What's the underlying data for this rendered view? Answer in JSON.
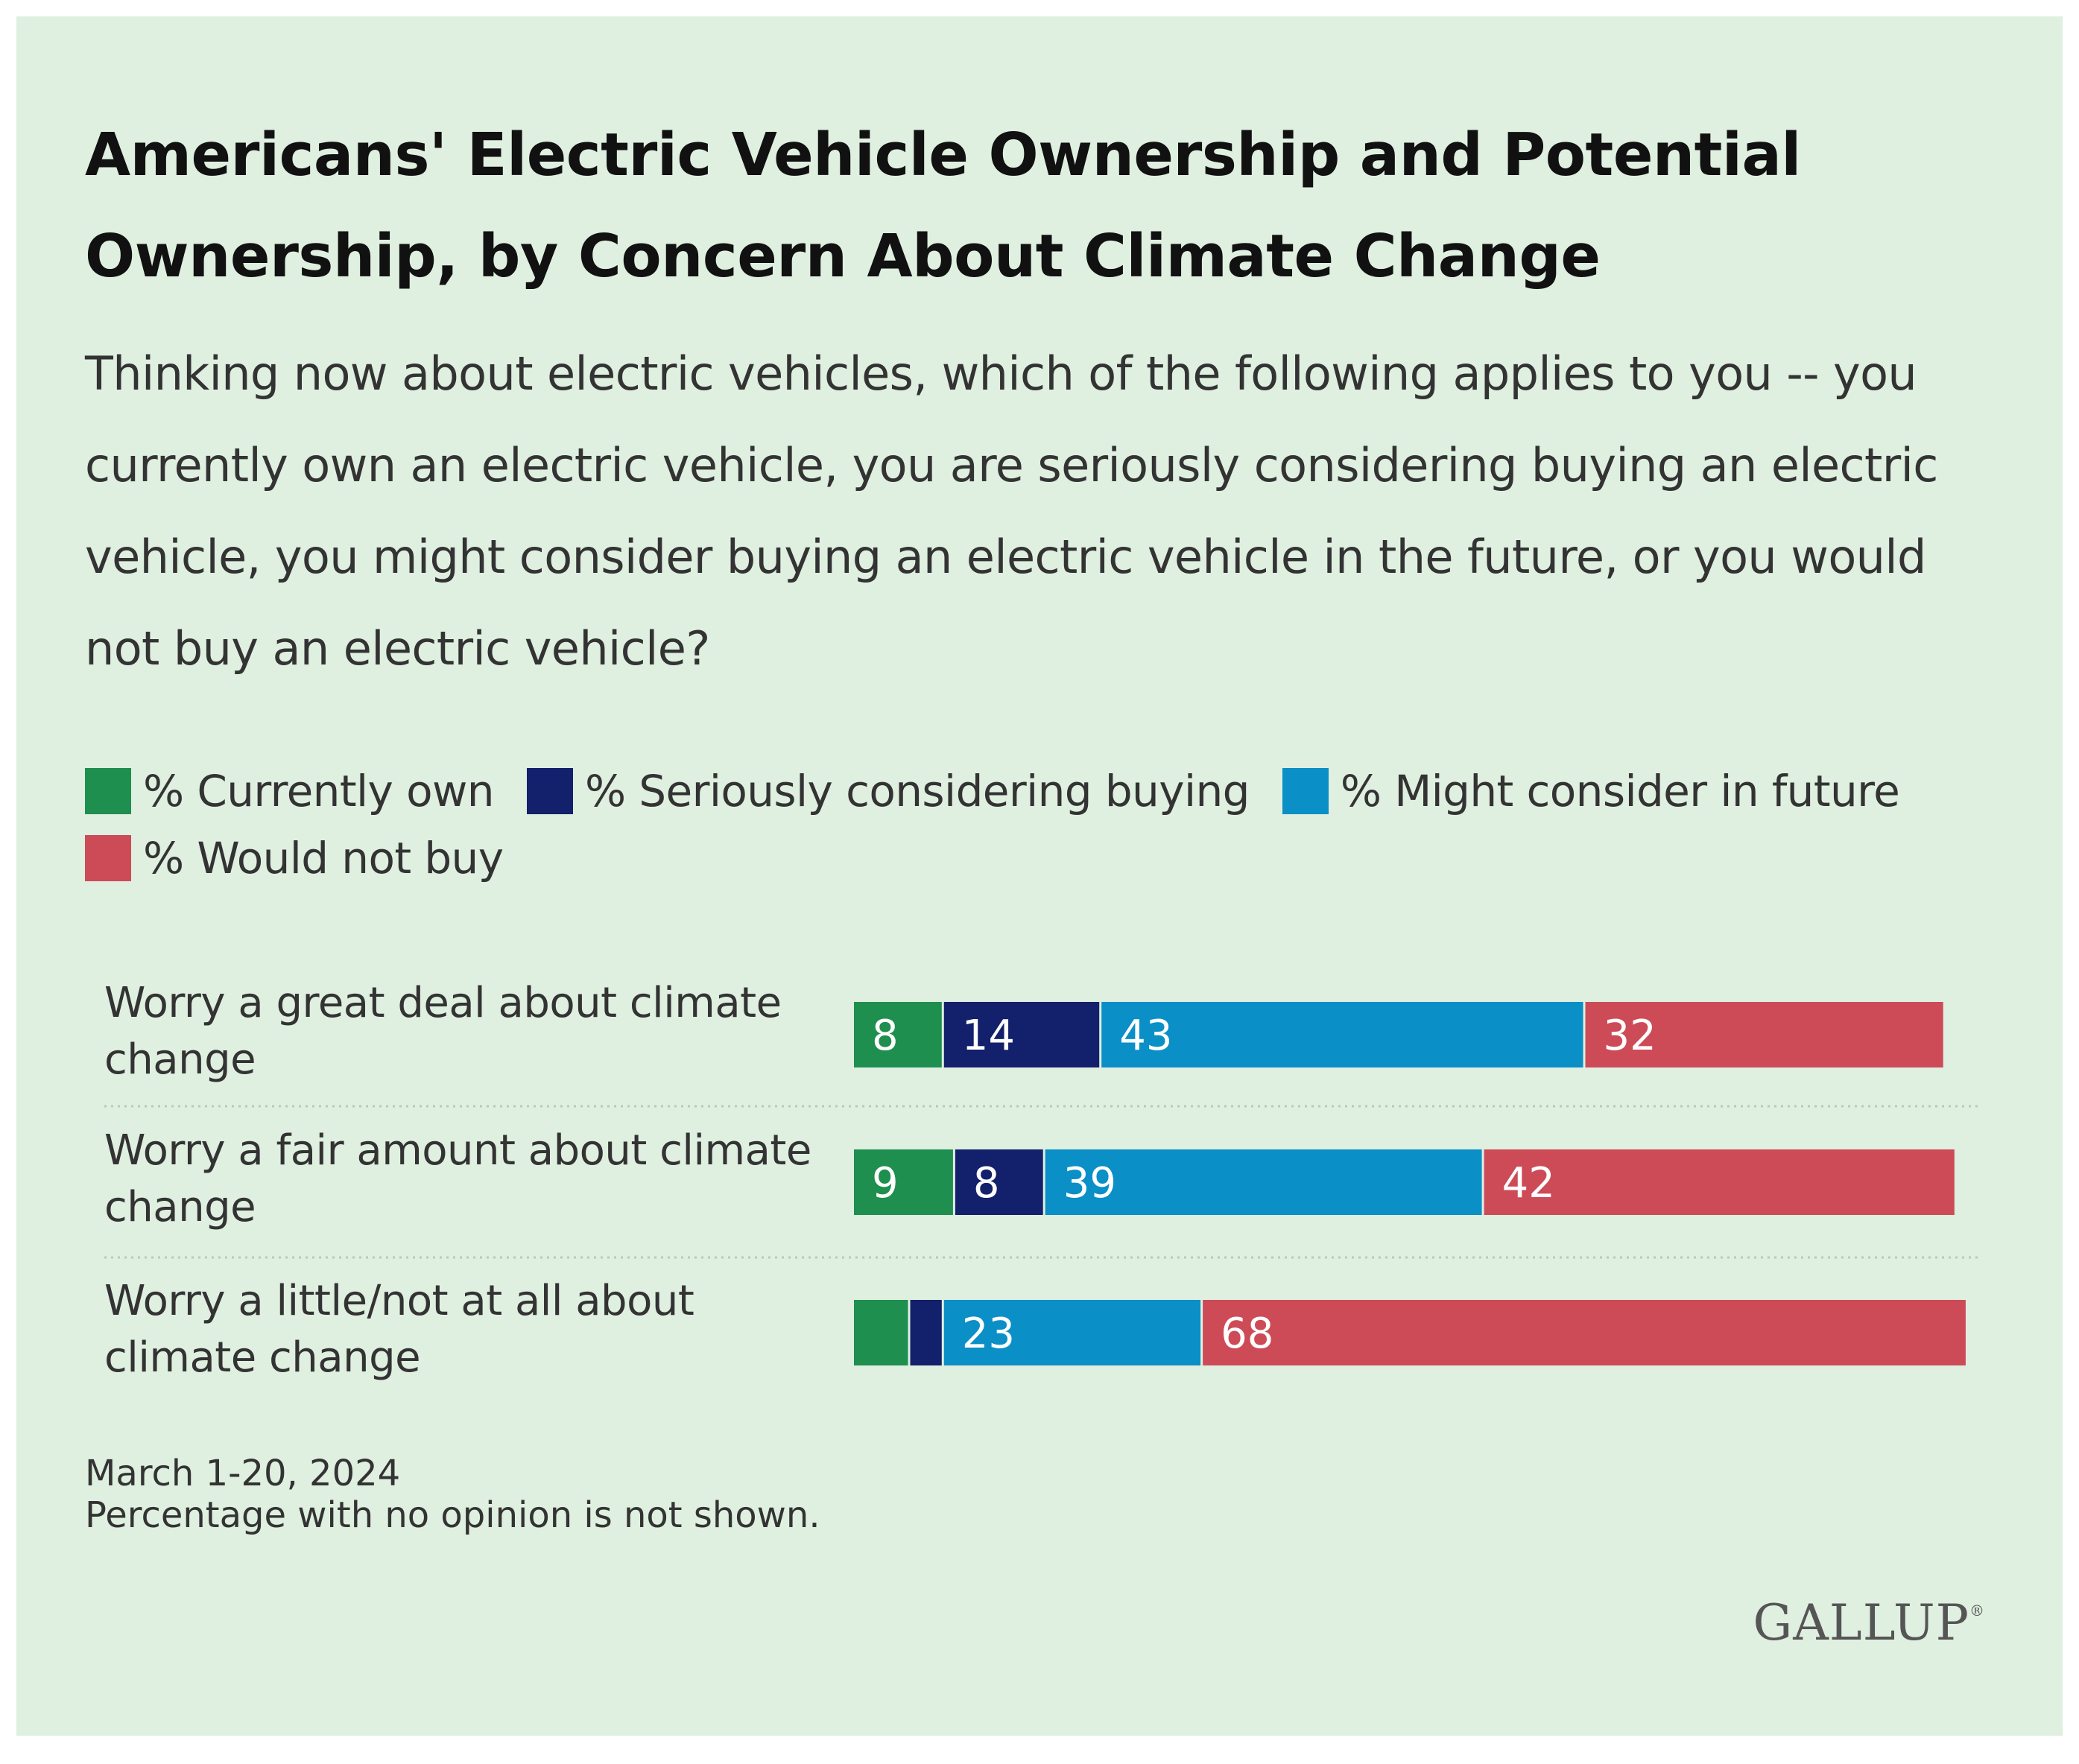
{
  "title": "Americans' Electric Vehicle Ownership and Potential Ownership, by Concern About Climate Change",
  "question": "Thinking now about electric vehicles, which of the following applies to you -- you currently own an electric vehicle, you are seriously considering buying an electric vehicle, you might consider buying an electric vehicle in the future, or you would not buy an electric vehicle?",
  "legend": [
    {
      "label": "% Currently own",
      "color": "#1e8f4e"
    },
    {
      "label": "% Seriously considering buying",
      "color": "#13206b"
    },
    {
      "label": "% Might consider in future",
      "color": "#0a8fc6"
    },
    {
      "label": "% Would not buy",
      "color": "#cd4b57"
    }
  ],
  "chart_data": {
    "type": "bar",
    "orientation": "horizontal",
    "stacked": true,
    "categories": [
      "Worry a great deal about climate change",
      "Worry a fair amount about climate change",
      "Worry a little/not at all about climate change"
    ],
    "series": [
      {
        "name": "% Currently own",
        "values": [
          8,
          9,
          5
        ],
        "labels": [
          "8",
          "9",
          ""
        ],
        "color": "#1e8f4e"
      },
      {
        "name": "% Seriously considering buying",
        "values": [
          14,
          8,
          3
        ],
        "labels": [
          "14",
          "8",
          ""
        ],
        "color": "#13206b"
      },
      {
        "name": "% Might consider in future",
        "values": [
          43,
          39,
          23
        ],
        "labels": [
          "43",
          "39",
          "23"
        ],
        "color": "#0a8fc6"
      },
      {
        "name": "% Would not buy",
        "values": [
          32,
          42,
          68
        ],
        "labels": [
          "32",
          "42",
          "68"
        ],
        "color": "#cd4b57"
      }
    ],
    "xlim": [
      0,
      100
    ],
    "title": "",
    "xlabel": "",
    "ylabel": ""
  },
  "footnote": {
    "date": "March 1-20, 2024",
    "note": "Percentage with no opinion is not shown."
  },
  "logo": "GALLUP"
}
